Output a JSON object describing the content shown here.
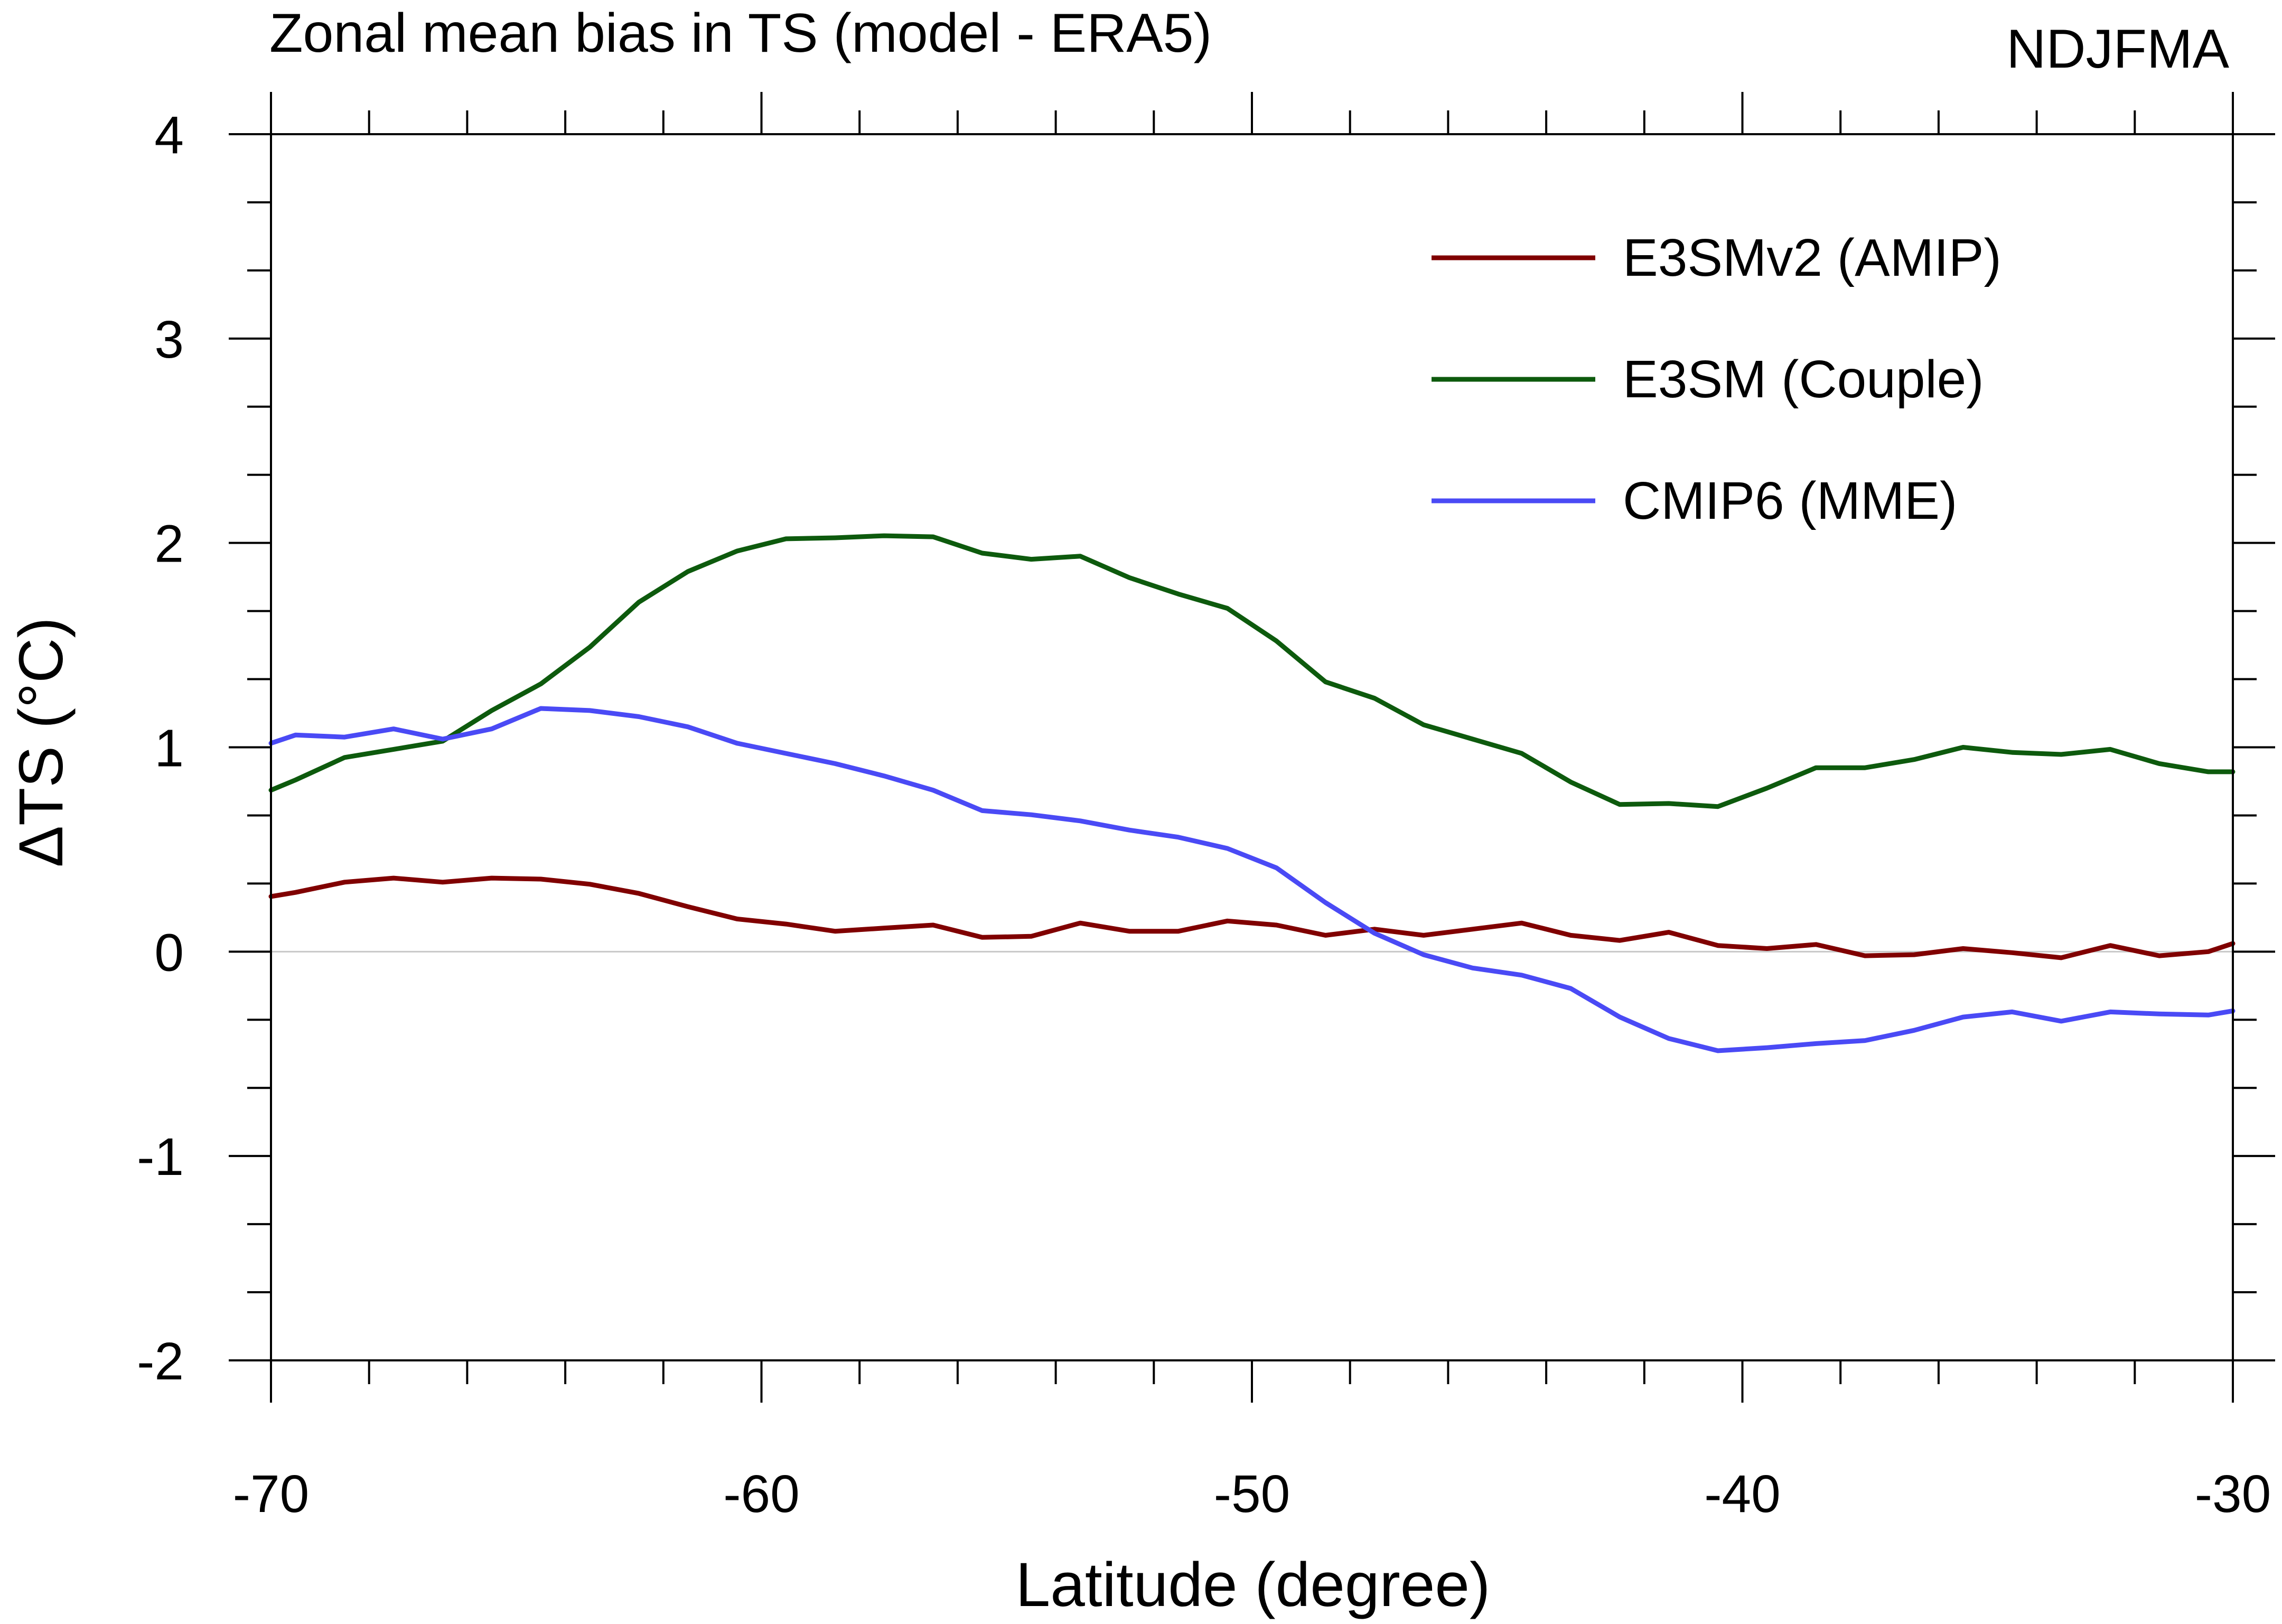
{
  "chart_data": {
    "type": "line",
    "title": "Zonal mean bias in TS (model - ERA5)",
    "season_label": "NDJFMA",
    "xlabel": "Latitude (degree)",
    "ylabel": "ΔTS (°C)",
    "xlim": [
      -70,
      -30
    ],
    "ylim": [
      -2,
      4
    ],
    "xticks": [
      -70,
      -60,
      -50,
      -40,
      -30
    ],
    "yticks": [
      -2,
      -1,
      0,
      1,
      2,
      3,
      4
    ],
    "xtick_labels": [
      "-70",
      "-60",
      "-50",
      "-40",
      "-30"
    ],
    "ytick_labels": [
      "-2",
      "-1",
      "0",
      "1",
      "2",
      "3",
      "4"
    ],
    "zero_line": true,
    "legend_position": "top-right",
    "x": [
      -70,
      -69.5,
      -68.5,
      -67.5,
      -66.5,
      -65.5,
      -64.5,
      -63.5,
      -62.5,
      -61.5,
      -60.5,
      -59.5,
      -58.5,
      -57.5,
      -56.5,
      -55.5,
      -54.5,
      -53.5,
      -52.5,
      -51.5,
      -50.5,
      -49.5,
      -48.5,
      -47.5,
      -46.5,
      -45.5,
      -44.5,
      -43.5,
      -42.5,
      -41.5,
      -40.5,
      -39.5,
      -38.5,
      -37.5,
      -36.5,
      -35.5,
      -34.5,
      -33.5,
      -32.5,
      -31.5,
      -30.5,
      -30
    ],
    "series": [
      {
        "name": "E3SMv2 (AMIP)",
        "color": "#800000",
        "values": [
          0.27,
          0.29,
          0.34,
          0.36,
          0.34,
          0.36,
          0.355,
          0.33,
          0.285,
          0.22,
          0.16,
          0.135,
          0.1,
          0.115,
          0.13,
          0.07,
          0.075,
          0.14,
          0.1,
          0.1,
          0.15,
          0.13,
          0.08,
          0.11,
          0.08,
          0.11,
          0.14,
          0.08,
          0.055,
          0.095,
          0.03,
          0.015,
          0.035,
          -0.02,
          -0.015,
          0.015,
          -0.005,
          -0.03,
          0.03,
          -0.02,
          0.0,
          0.04
        ]
      },
      {
        "name": "E3SM (Couple)",
        "color": "#0d5a0d",
        "values": [
          0.79,
          0.84,
          0.95,
          0.99,
          1.03,
          1.18,
          1.31,
          1.49,
          1.71,
          1.86,
          1.96,
          2.02,
          2.025,
          2.035,
          2.03,
          1.95,
          1.92,
          1.935,
          1.83,
          1.75,
          1.68,
          1.52,
          1.32,
          1.24,
          1.11,
          1.04,
          0.97,
          0.83,
          0.72,
          0.725,
          0.71,
          0.8,
          0.9,
          0.9,
          0.94,
          1.0,
          0.975,
          0.965,
          0.99,
          0.92,
          0.88,
          0.88
        ]
      },
      {
        "name": "CMIP6 (MME)",
        "color": "#4a4af5",
        "values": [
          1.02,
          1.06,
          1.05,
          1.09,
          1.04,
          1.09,
          1.19,
          1.18,
          1.15,
          1.1,
          1.02,
          0.97,
          0.92,
          0.86,
          0.79,
          0.69,
          0.67,
          0.64,
          0.595,
          0.56,
          0.505,
          0.41,
          0.24,
          0.09,
          -0.015,
          -0.08,
          -0.115,
          -0.18,
          -0.32,
          -0.425,
          -0.485,
          -0.47,
          -0.45,
          -0.435,
          -0.385,
          -0.32,
          -0.295,
          -0.34,
          -0.295,
          -0.305,
          -0.31,
          -0.29
        ]
      }
    ]
  }
}
